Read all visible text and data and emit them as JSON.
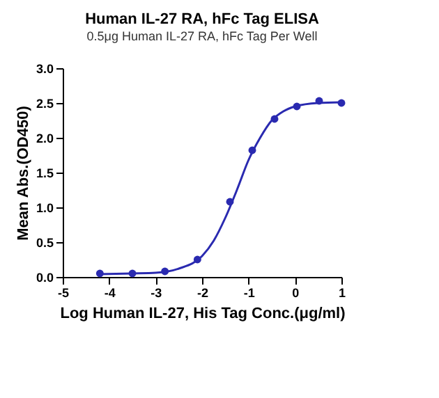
{
  "chart_data": {
    "type": "scatter",
    "title": "Human IL-27 RA, hFc Tag ELISA",
    "subtitle": "0.5μg Human IL-27 RA, hFc Tag Per Well",
    "xlabel": "Log Human IL-27, His Tag Conc.(μg/ml)",
    "ylabel": "Mean Abs.(OD450)",
    "xlim": [
      -5,
      1
    ],
    "xticks": [
      -5,
      -4,
      -3,
      -2,
      -1,
      0,
      1
    ],
    "ylim": [
      0,
      3
    ],
    "yticks": [
      {
        "value": 0,
        "label": "0.0"
      },
      {
        "value": 0.5,
        "label": "0.5"
      },
      {
        "value": 1,
        "label": "1.0"
      },
      {
        "value": 1.5,
        "label": "1.5"
      },
      {
        "value": 2,
        "label": "2.0"
      },
      {
        "value": 2.5,
        "label": "2.5"
      },
      {
        "value": 3,
        "label": "3.0"
      }
    ],
    "grid": false,
    "series": [
      {
        "marker": "circle",
        "color": "#2a2ab0",
        "x": [
          -4.2,
          -3.5,
          -2.8,
          -2.1,
          -1.4,
          -0.92,
          -0.44,
          0.04,
          0.52,
          1.0
        ],
        "values": [
          0.05,
          0.05,
          0.08,
          0.25,
          1.08,
          1.82,
          2.27,
          2.45,
          2.53,
          2.5
        ]
      },
      {
        "type": "line",
        "color": "#2a2ab0",
        "x": [
          -4.2,
          -3.5,
          -3,
          -2.5,
          -2,
          -1.75,
          -1.5,
          -1.25,
          -1,
          -0.75,
          -0.5,
          -0.25,
          0,
          0.5,
          1
        ],
        "values": [
          0.04,
          0.05,
          0.06,
          0.12,
          0.3,
          0.52,
          0.85,
          1.25,
          1.68,
          2.0,
          2.25,
          2.38,
          2.45,
          2.5,
          2.51
        ]
      }
    ]
  }
}
